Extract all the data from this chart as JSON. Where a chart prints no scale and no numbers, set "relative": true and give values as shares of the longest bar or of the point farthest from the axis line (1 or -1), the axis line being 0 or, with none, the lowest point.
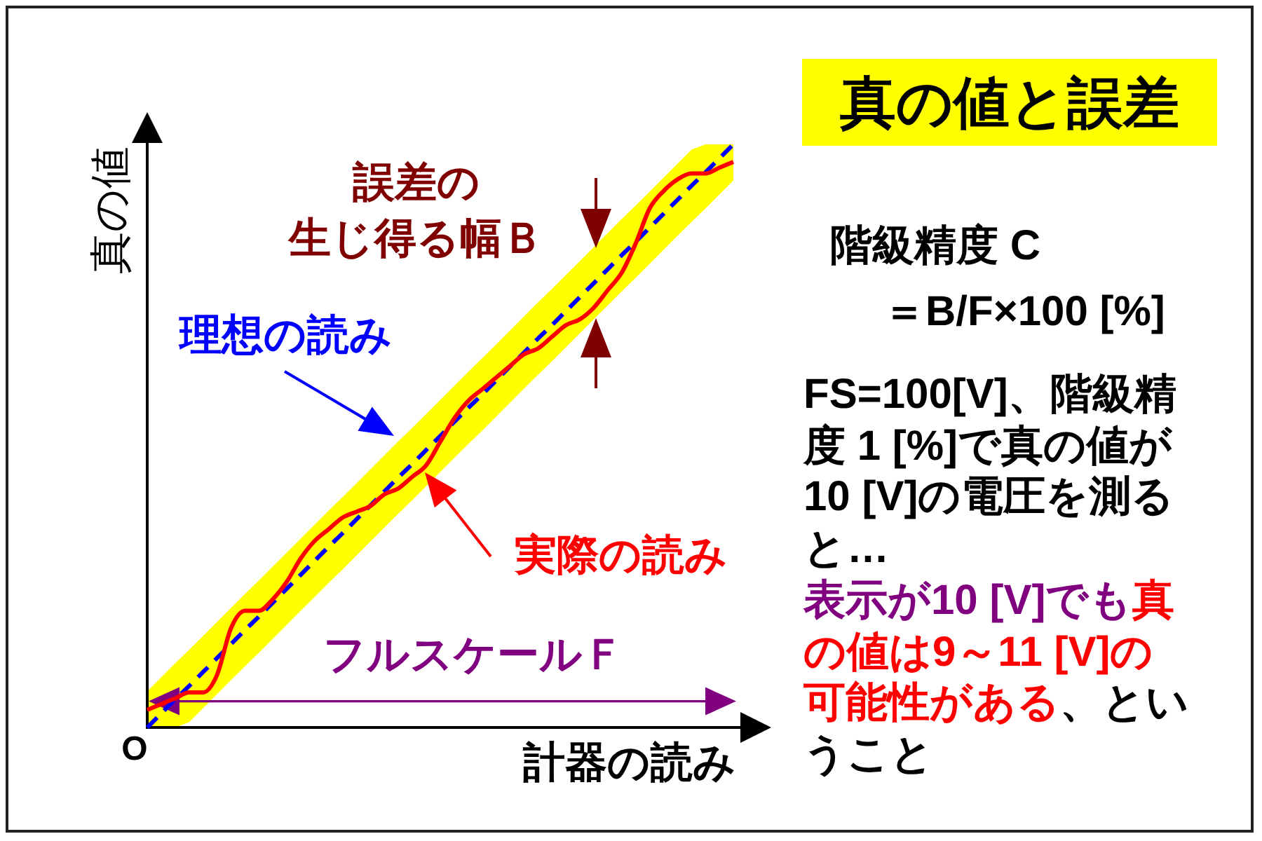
{
  "chart_data": {
    "type": "line",
    "title": "真の値と誤差",
    "xlabel": "計器の読み",
    "ylabel": "真の値",
    "relative": true,
    "categories": [
      null,
      null,
      null,
      null,
      null,
      null,
      null,
      null,
      null,
      null,
      null,
      null,
      null,
      null,
      null,
      null,
      null,
      null,
      null,
      null,
      null,
      null,
      null,
      null,
      null,
      null,
      null,
      null,
      null,
      null,
      null,
      null,
      null,
      null,
      null,
      null,
      null,
      null,
      null,
      null,
      null,
      null,
      null
    ],
    "series": [
      {
        "name": "理想の読み",
        "color": "#0000ff",
        "line_style": "dashed",
        "values": [
          0,
          0.024,
          0.048,
          0.071,
          0.095,
          0.119,
          0.143,
          0.167,
          0.19,
          0.214,
          0.238,
          0.262,
          0.286,
          0.31,
          0.333,
          0.357,
          0.381,
          0.405,
          0.429,
          0.452,
          0.476,
          0.5,
          0.524,
          0.548,
          0.571,
          0.595,
          0.619,
          0.643,
          0.667,
          0.69,
          0.714,
          0.738,
          0.762,
          0.786,
          0.81,
          0.833,
          0.857,
          0.881,
          0.905,
          0.929,
          0.952,
          0.976,
          1
        ],
        "lower": [
          0,
          0,
          0,
          0.009,
          0.033,
          0.057,
          0.081,
          0.105,
          0.128,
          0.152,
          0.176,
          0.2,
          0.224,
          0.248,
          0.271,
          0.295,
          0.319,
          0.343,
          0.367,
          0.39,
          0.414,
          0.438,
          0.462,
          0.486,
          0.509,
          0.533,
          0.557,
          0.581,
          0.605,
          0.628,
          0.652,
          0.676,
          0.7,
          0.724,
          0.748,
          0.771,
          0.795,
          0.819,
          0.843,
          0.867,
          0.89,
          0.914,
          0.938
        ],
        "upper": [
          0.062,
          0.086,
          0.11,
          0.133,
          0.157,
          0.181,
          0.205,
          0.229,
          0.252,
          0.276,
          0.3,
          0.324,
          0.348,
          0.372,
          0.395,
          0.419,
          0.443,
          0.467,
          0.491,
          0.514,
          0.538,
          0.562,
          0.586,
          0.61,
          0.633,
          0.657,
          0.681,
          0.705,
          0.729,
          0.752,
          0.776,
          0.8,
          0.824,
          0.848,
          0.872,
          0.895,
          0.919,
          0.943,
          0.967,
          0.991,
          1,
          1,
          1
        ]
      },
      {
        "name": "実際の読み",
        "color": "#ff0000",
        "line_style": "solid",
        "values": [
          0.03,
          0.04,
          0.05,
          0.06,
          0.06,
          0.09,
          0.17,
          0.2,
          0.2,
          0.22,
          0.25,
          0.29,
          0.32,
          0.34,
          0.36,
          0.37,
          0.38,
          0.4,
          0.41,
          0.43,
          0.45,
          0.49,
          0.53,
          0.56,
          0.58,
          0.6,
          0.62,
          0.64,
          0.65,
          0.67,
          0.69,
          0.7,
          0.72,
          0.75,
          0.78,
          0.83,
          0.89,
          0.92,
          0.94,
          0.95,
          0.95,
          0.96,
          0.97
        ]
      }
    ],
    "annotations": [
      "誤差の",
      "生じ得る幅Ｂ",
      "フルスケールＦ",
      "O",
      "階級精度 C",
      "＝B/F×100 [%]",
      "FS=100[V]、階級精度 1 [%]で真の値が10 [V]の電圧を測ると…",
      "表示が10 [V]でも",
      "真",
      "の値は9～11 [V]の",
      "可能性がある",
      "、とい",
      "うこと"
    ]
  }
}
